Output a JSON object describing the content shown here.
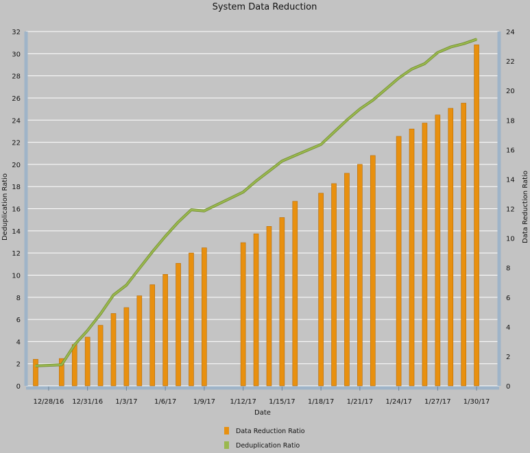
{
  "chart_data": {
    "type": "bar",
    "title": "System Data Reduction",
    "xlabel": "Date",
    "ylabel_left": "Deduplication Ratio",
    "ylabel_right": "Data Reduction Ratio",
    "ylim_left": [
      0,
      32
    ],
    "ylim_right": [
      0,
      24
    ],
    "yticks_left": [
      "0",
      "2",
      "4",
      "6",
      "8",
      "10",
      "12",
      "14",
      "16",
      "18",
      "20",
      "22",
      "24",
      "26",
      "28",
      "30",
      "32"
    ],
    "yticks_right": [
      "0",
      "2",
      "4",
      "6",
      "8",
      "10",
      "12",
      "14",
      "16",
      "18",
      "20",
      "22",
      "24"
    ],
    "grid": true,
    "legend_position": "bottom",
    "xlim": [
      "12/27/16",
      "1/31/17"
    ],
    "x_ticks": [
      "12/28/16",
      "12/31/16",
      "1/3/17",
      "1/6/17",
      "1/9/17",
      "1/12/17",
      "1/15/17",
      "1/18/17",
      "1/21/17",
      "1/24/17",
      "1/27/17",
      "1/30/17"
    ],
    "series": [
      {
        "name": "Data Reduction Ratio",
        "type": "bar",
        "axis": "right",
        "color": "#e8900f",
        "x": [
          "12/27/16",
          "12/29/16",
          "12/30/16",
          "12/31/16",
          "1/1/17",
          "1/2/17",
          "1/3/17",
          "1/4/17",
          "1/5/17",
          "1/6/17",
          "1/7/17",
          "1/8/17",
          "1/9/17",
          "1/12/17",
          "1/13/17",
          "1/14/17",
          "1/15/17",
          "1/16/17",
          "1/18/17",
          "1/19/17",
          "1/20/17",
          "1/21/17",
          "1/22/17",
          "1/24/17",
          "1/25/17",
          "1/26/17",
          "1/27/17",
          "1/28/17",
          "1/29/17",
          "1/30/17"
        ],
        "values": [
          1.8,
          1.85,
          2.8,
          3.3,
          4.1,
          4.9,
          5.3,
          6.1,
          6.85,
          7.55,
          8.3,
          9.0,
          9.35,
          9.7,
          10.3,
          10.8,
          11.4,
          12.5,
          13.05,
          13.7,
          14.4,
          15.0,
          15.6,
          16.9,
          17.4,
          17.8,
          18.35,
          18.8,
          19.15,
          23.1
        ]
      },
      {
        "name": "Deduplication Ratio",
        "type": "line",
        "axis": "left",
        "color": "#9ab84e",
        "x": [
          "12/27/16",
          "12/29/16",
          "12/30/16",
          "12/31/16",
          "1/1/17",
          "1/2/17",
          "1/3/17",
          "1/4/17",
          "1/5/17",
          "1/6/17",
          "1/7/17",
          "1/8/17",
          "1/9/17",
          "1/12/17",
          "1/13/17",
          "1/14/17",
          "1/15/17",
          "1/16/17",
          "1/18/17",
          "1/19/17",
          "1/20/17",
          "1/21/17",
          "1/22/17",
          "1/24/17",
          "1/25/17",
          "1/26/17",
          "1/27/17",
          "1/28/17",
          "1/29/17",
          "1/30/17"
        ],
        "values": [
          1.8,
          1.9,
          3.7,
          5.0,
          6.5,
          8.2,
          9.1,
          10.6,
          12.1,
          13.5,
          14.8,
          15.9,
          15.8,
          17.5,
          18.5,
          19.4,
          20.3,
          20.8,
          21.8,
          22.9,
          24.0,
          25.0,
          25.8,
          27.8,
          28.6,
          29.1,
          30.1,
          30.6,
          30.9,
          31.3
        ]
      }
    ]
  }
}
